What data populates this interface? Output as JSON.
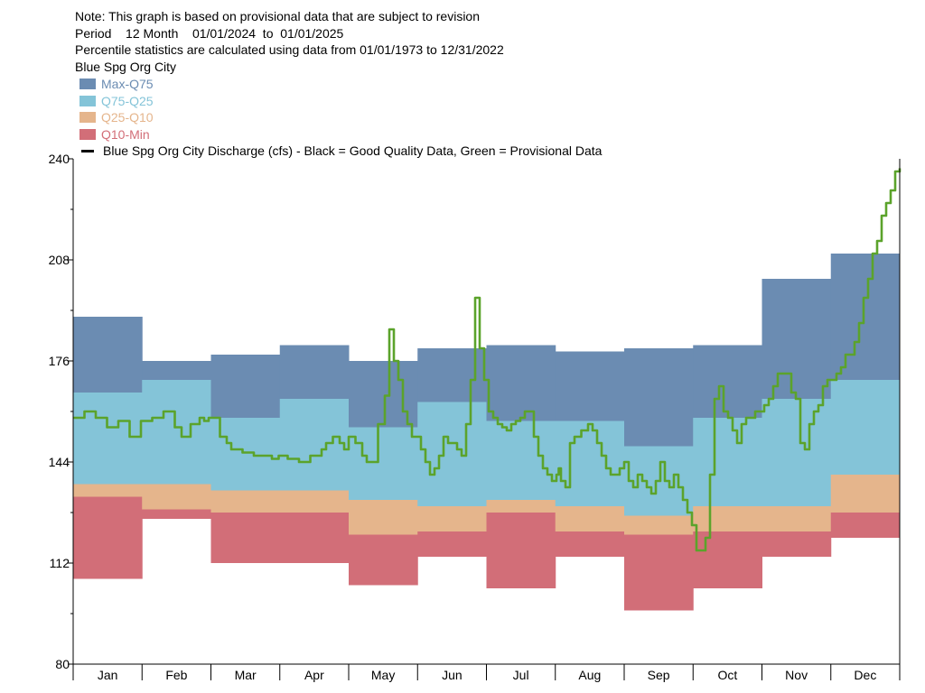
{
  "header": {
    "note": "Note: This graph is based on provisional data that are subject to revision",
    "period": "Period    12 Month    01/01/2024  to  01/01/2025",
    "stats": "Percentile statistics are calculated using data from 01/01/1973 to 12/31/2022",
    "site": "Blue Spg Org City"
  },
  "legend": [
    {
      "label": "Max-Q75",
      "color": "#6B8CB2"
    },
    {
      "label": "Q75-Q25",
      "color": "#84C4D8"
    },
    {
      "label": "Q25-Q10",
      "color": "#E5B58C"
    },
    {
      "label": "Q10-Min",
      "color": "#D26E78"
    }
  ],
  "series_label": "Blue Spg Org City Discharge (cfs) - Black = Good Quality Data, Green = Provisional Data",
  "chart_data": {
    "type": "area",
    "ylim": [
      80,
      240
    ],
    "yticks": [
      80,
      112,
      144,
      176,
      208,
      240
    ],
    "categories": [
      "Jan",
      "Feb",
      "Mar",
      "Apr",
      "May",
      "Jun",
      "Jul",
      "Aug",
      "Sep",
      "Oct",
      "Nov",
      "Dec"
    ],
    "bands": {
      "max": [
        190,
        176,
        178,
        181,
        176,
        180,
        181,
        179,
        180,
        181,
        202,
        210
      ],
      "q75": [
        166,
        170,
        158,
        164,
        155,
        163,
        157,
        157,
        149,
        158,
        164,
        170
      ],
      "q25": [
        137,
        137,
        135,
        135,
        132,
        130,
        132,
        130,
        127,
        130,
        130,
        140
      ],
      "q10": [
        133,
        129,
        128,
        128,
        121,
        122,
        128,
        122,
        121,
        122,
        122,
        128
      ],
      "min": [
        107,
        126,
        112,
        112,
        105,
        114,
        104,
        114,
        97,
        104,
        114,
        120
      ]
    },
    "discharge": {
      "name": "Blue Spg Org City Discharge (cfs)",
      "color": "#5BA32B",
      "x": [
        0,
        5,
        10,
        15,
        20,
        25,
        30,
        32,
        35,
        40,
        45,
        48,
        52,
        56,
        58,
        60,
        65,
        68,
        70,
        75,
        80,
        85,
        88,
        91,
        95,
        100,
        105,
        110,
        112,
        115,
        118,
        120,
        122,
        125,
        128,
        130,
        132,
        135,
        138,
        140,
        142,
        144,
        146,
        148,
        150,
        152,
        154,
        156,
        158,
        160,
        162,
        164,
        166,
        168,
        170,
        172,
        174,
        176,
        178,
        180,
        182,
        184,
        186,
        188,
        190,
        192,
        194,
        196,
        198,
        200,
        202,
        204,
        206,
        208,
        210,
        212,
        214,
        215,
        216,
        218,
        220,
        222,
        225,
        228,
        230,
        232,
        234,
        236,
        238,
        240,
        242,
        244,
        246,
        248,
        250,
        252,
        254,
        256,
        258,
        260,
        262,
        264,
        266,
        268,
        270,
        272,
        274,
        276,
        278,
        280,
        282,
        284,
        286,
        288,
        290,
        292,
        294,
        296,
        298,
        300,
        302,
        304,
        306,
        308,
        310,
        312,
        314,
        316,
        318,
        320,
        322,
        324,
        326,
        328,
        330,
        332,
        334,
        336,
        338,
        340,
        342,
        344,
        346,
        348,
        350,
        352,
        354,
        356,
        358,
        360,
        362,
        364,
        366
      ],
      "y": [
        158,
        160,
        158,
        155,
        157,
        152,
        157,
        157,
        158,
        160,
        155,
        152,
        156,
        158,
        157,
        158,
        152,
        150,
        148,
        147,
        146,
        146,
        145,
        146,
        145,
        144,
        146,
        148,
        150,
        152,
        150,
        148,
        152,
        150,
        146,
        144,
        144,
        156,
        165,
        186,
        176,
        170,
        160,
        156,
        152,
        152,
        148,
        144,
        140,
        142,
        146,
        152,
        150,
        150,
        148,
        146,
        156,
        170,
        196,
        180,
        170,
        160,
        158,
        156,
        155,
        154,
        156,
        157,
        158,
        160,
        160,
        152,
        146,
        142,
        140,
        138,
        140,
        142,
        138,
        136,
        150,
        152,
        154,
        156,
        154,
        150,
        146,
        142,
        140,
        140,
        142,
        144,
        138,
        136,
        140,
        138,
        136,
        134,
        138,
        144,
        138,
        136,
        140,
        136,
        132,
        128,
        124,
        116,
        116,
        120,
        140,
        164,
        168,
        160,
        158,
        154,
        150,
        156,
        158,
        158,
        160,
        160,
        162,
        164,
        168,
        172,
        172,
        172,
        166,
        164,
        150,
        148,
        156,
        160,
        162,
        168,
        170,
        170,
        172,
        174,
        178,
        178,
        182,
        188,
        196,
        202,
        210,
        214,
        222,
        226,
        230,
        236,
        237
      ]
    }
  }
}
